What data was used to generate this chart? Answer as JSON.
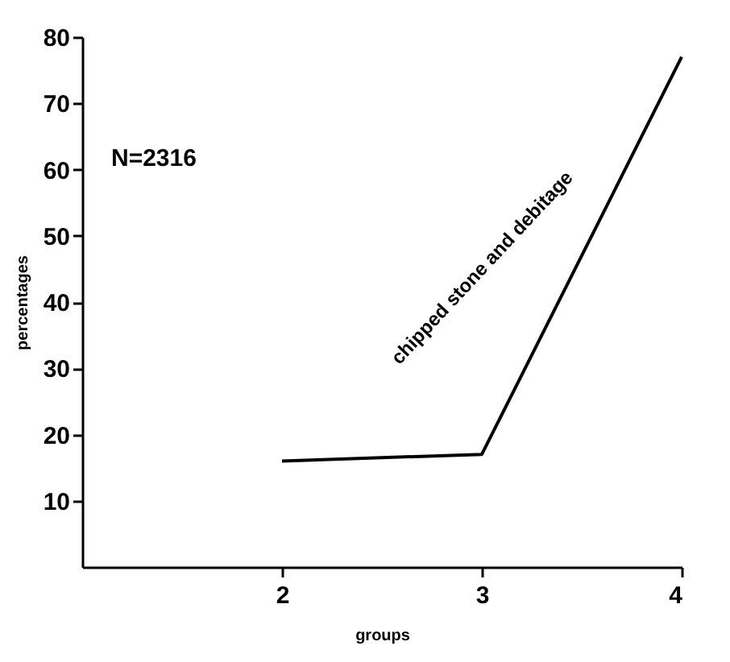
{
  "chart_data": {
    "type": "line",
    "xlabel": "groups",
    "ylabel": "percentages",
    "annotations": [
      "N=2316"
    ],
    "x": [
      2,
      3,
      4
    ],
    "series": [
      {
        "name": "chipped stone and debitage",
        "color": "#000000",
        "values": [
          16,
          17,
          77
        ]
      }
    ],
    "xlim": [
      1,
      4
    ],
    "xticks": [
      2,
      3,
      4
    ],
    "ylim": [
      0,
      80
    ],
    "yticks": [
      10,
      20,
      30,
      40,
      50,
      60,
      70,
      80
    ],
    "grid": false,
    "legend": false,
    "marker": "none",
    "line_style": "solid"
  }
}
